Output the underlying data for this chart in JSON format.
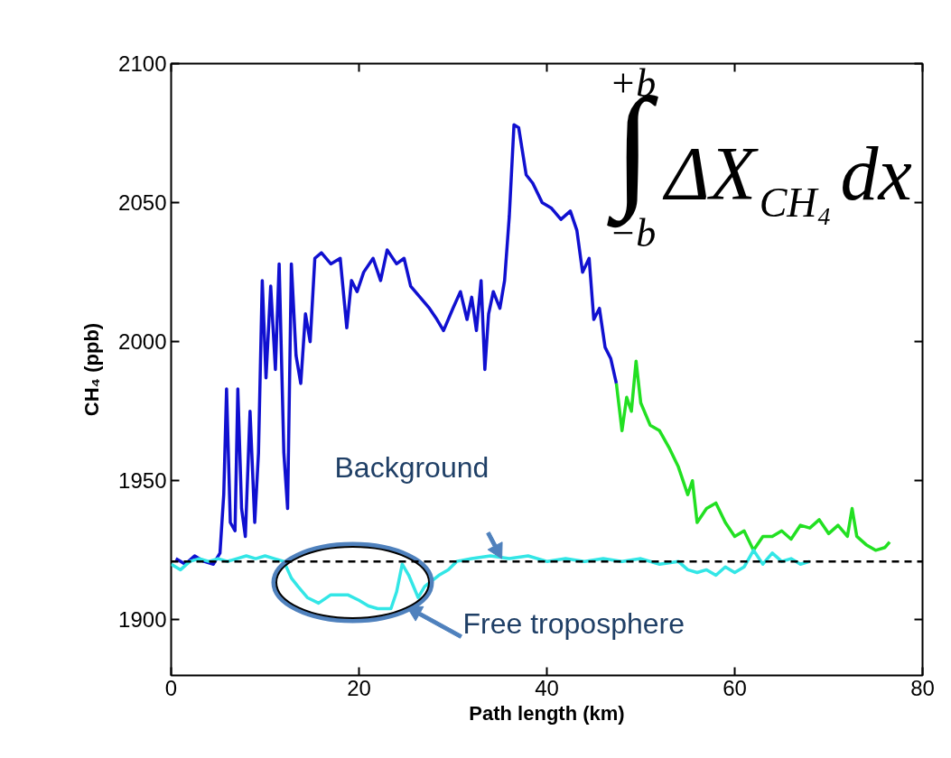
{
  "chart_data": {
    "type": "line",
    "xlabel": "Path length (km)",
    "ylabel": "CH₄ (ppb)",
    "xlim": [
      0,
      80
    ],
    "ylim": [
      1880,
      2100
    ],
    "xticks": [
      0,
      20,
      40,
      60,
      80
    ],
    "yticks": [
      1900,
      1950,
      2000,
      2050,
      2100
    ],
    "grid": false,
    "marker": "none",
    "line_style": "solid",
    "series": [
      {
        "color": "#1010d0",
        "x": [
          0.5,
          1.5,
          2.5,
          3.5,
          4.5,
          5.2,
          5.6,
          5.9,
          6.3,
          6.8,
          7.1,
          7.5,
          7.9,
          8.4,
          8.9,
          9.3,
          9.7,
          10.1,
          10.6,
          11.1,
          11.5,
          12.0,
          12.4,
          12.8,
          13.3,
          13.8,
          14.3,
          14.8,
          15.3,
          16,
          17,
          18,
          18.7,
          19.2,
          19.8,
          20.5,
          21.5,
          22.3,
          23,
          24,
          24.8,
          25.5,
          26.5,
          27.5,
          28.3,
          29,
          30,
          30.8,
          31.5,
          32,
          32.5,
          33,
          33.4,
          33.8,
          34.3,
          35,
          35.5,
          36,
          36.5,
          37,
          37.8,
          38.5,
          39.5,
          40.5,
          41.5,
          42.5,
          43.2,
          43.8,
          44.5,
          45,
          45.6,
          46.2,
          46.8,
          47.4
        ],
        "values": [
          1922,
          1920,
          1923,
          1921,
          1920,
          1924,
          1945,
          1983,
          1935,
          1932,
          1983,
          1940,
          1930,
          1975,
          1935,
          1960,
          2022,
          1987,
          2020,
          1990,
          2028,
          1960,
          1940,
          2028,
          1995,
          1985,
          2010,
          2000,
          2030,
          2032,
          2028,
          2030,
          2005,
          2022,
          2018,
          2025,
          2030,
          2022,
          2033,
          2028,
          2030,
          2020,
          2016,
          2012,
          2008,
          2004,
          2012,
          2018,
          2008,
          2016,
          2004,
          2022,
          1990,
          2010,
          2018,
          2012,
          2022,
          2045,
          2078,
          2077,
          2060,
          2057,
          2050,
          2048,
          2044,
          2047,
          2040,
          2025,
          2030,
          2008,
          2012,
          1998,
          1994,
          1985
        ]
      },
      {
        "color": "#22e022",
        "x": [
          47.4,
          48,
          48.5,
          49,
          49.5,
          50,
          51,
          52,
          53,
          54,
          55,
          55.5,
          56,
          57,
          58,
          59,
          60,
          61,
          62,
          63,
          64,
          65,
          66,
          67,
          68,
          69,
          70,
          71,
          72,
          72.5,
          73,
          74,
          75,
          76,
          76.5
        ],
        "values": [
          1985,
          1968,
          1980,
          1975,
          1993,
          1978,
          1970,
          1968,
          1962,
          1955,
          1945,
          1950,
          1935,
          1940,
          1942,
          1935,
          1930,
          1932,
          1925,
          1930,
          1930,
          1932,
          1929,
          1934,
          1933,
          1936,
          1931,
          1934,
          1930,
          1940,
          1930,
          1927,
          1925,
          1926,
          1928
        ]
      },
      {
        "color": "#33e6e6",
        "x": [
          0,
          1,
          2,
          3,
          4,
          5,
          6,
          7,
          8,
          9,
          10,
          11,
          12,
          12.8,
          13.5,
          14.5,
          15.7,
          17,
          18.8,
          20,
          21,
          22,
          23.4,
          24,
          24.6,
          25.3,
          26.3,
          27,
          28.5,
          29.5,
          30.4,
          32,
          34,
          36,
          38,
          40,
          42,
          44,
          46,
          48,
          50,
          52,
          54,
          55,
          56,
          57,
          58,
          59,
          60,
          61,
          62,
          63,
          64,
          65,
          66,
          67,
          68
        ],
        "values": [
          1920,
          1918,
          1921,
          1922,
          1921,
          1922,
          1921,
          1922,
          1923,
          1922,
          1923,
          1922,
          1921,
          1915,
          1912,
          1908,
          1906,
          1909,
          1909,
          1907,
          1905,
          1904,
          1904,
          1910,
          1920,
          1916,
          1908,
          1912,
          1916,
          1918,
          1921,
          1922,
          1923,
          1922,
          1923,
          1921,
          1922,
          1921,
          1922,
          1921,
          1922,
          1920,
          1921,
          1918,
          1917,
          1918,
          1916,
          1919,
          1917,
          1919,
          1925,
          1920,
          1924,
          1921,
          1922,
          1920,
          1921
        ]
      }
    ],
    "ref_lines": [
      {
        "axis": "y",
        "value": 1921,
        "color": "#000000",
        "line_style": "dashed"
      }
    ],
    "annotations": [
      "+b",
      "∫",
      "−b",
      "ΔX$_{CH₄}$dx",
      {
        "text": "Background",
        "x": 35.2,
        "y": 1922
      },
      "Free troposphere"
    ]
  }
}
